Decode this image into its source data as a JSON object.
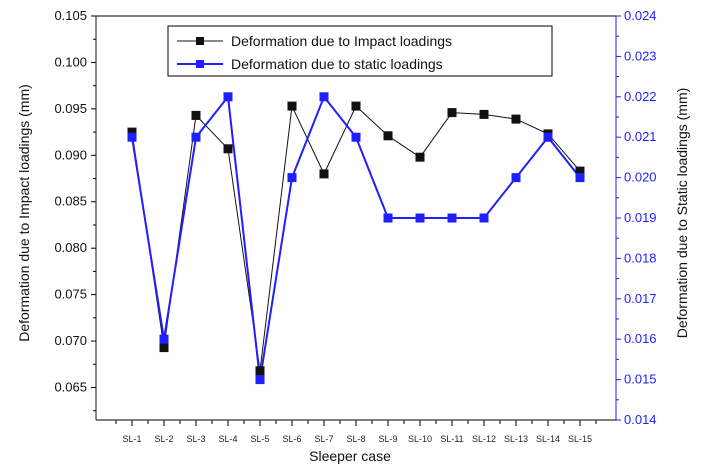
{
  "chart_data": {
    "type": "line",
    "categories": [
      "SL-1",
      "SL-2",
      "SL-3",
      "SL-4",
      "SL-5",
      "SL-6",
      "SL-7",
      "SL-8",
      "SL-9",
      "SL-10",
      "SL-11",
      "SL-12",
      "SL-13",
      "SL-14",
      "SL-15"
    ],
    "xlabel": "Sleeper case",
    "ylabel_left": "Deformation due to Impact loadings (mm)",
    "ylabel_right": "Deformation due to Static loadings (mm)",
    "ylim_left": [
      0.0615,
      0.105
    ],
    "ylim_right": [
      0.014,
      0.024
    ],
    "yticks_left": [
      "0.065",
      "0.070",
      "0.075",
      "0.080",
      "0.085",
      "0.090",
      "0.095",
      "0.100",
      "0.105"
    ],
    "yticks_right": [
      "0.014",
      "0.015",
      "0.016",
      "0.017",
      "0.018",
      "0.019",
      "0.020",
      "0.021",
      "0.022",
      "0.023",
      "0.024"
    ],
    "grid": false,
    "legend_position": "top-center",
    "series": [
      {
        "name": "Deformation due to Impact loadings",
        "axis": "left",
        "color": "#111111",
        "marker": "square",
        "values": [
          0.0925,
          0.0693,
          0.0943,
          0.0907,
          0.0668,
          0.0953,
          0.088,
          0.0953,
          0.0921,
          0.0898,
          0.0946,
          0.0944,
          0.0939,
          0.0923,
          0.0883
        ]
      },
      {
        "name": "Deformation due to static loadings",
        "axis": "right",
        "color": "#1f1fff",
        "marker": "square",
        "values": [
          0.021,
          0.016,
          0.021,
          0.022,
          0.015,
          0.02,
          0.022,
          0.021,
          0.019,
          0.019,
          0.019,
          0.019,
          0.02,
          0.021,
          0.02
        ]
      }
    ],
    "left_axis_color": "#111111",
    "right_axis_color": "#1f1fff"
  }
}
